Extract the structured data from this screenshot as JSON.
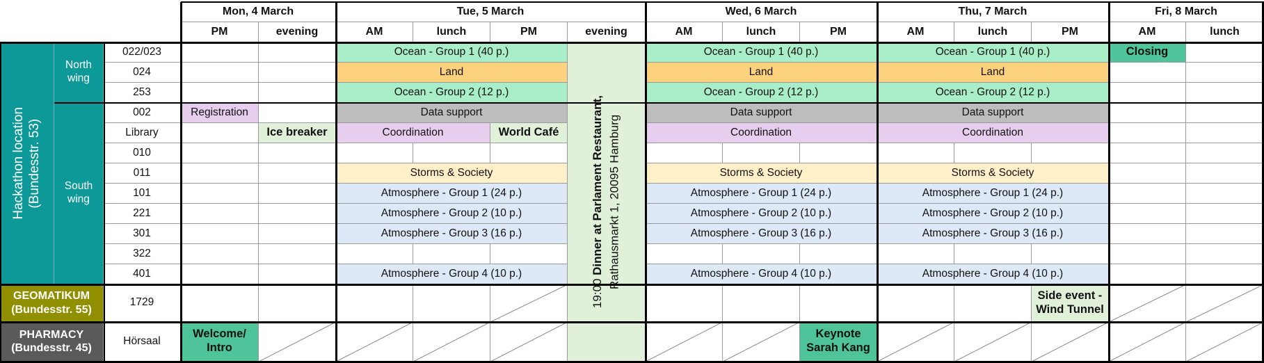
{
  "days": [
    {
      "label": "Mon, 4 March",
      "slots": [
        "PM",
        "evening"
      ]
    },
    {
      "label": "Tue, 5 March",
      "slots": [
        "AM",
        "lunch",
        "PM",
        "evening"
      ]
    },
    {
      "label": "Wed, 6 March",
      "slots": [
        "AM",
        "lunch",
        "PM"
      ]
    },
    {
      "label": "Thu, 7 March",
      "slots": [
        "AM",
        "lunch",
        "PM"
      ]
    },
    {
      "label": "Fri, 8 March",
      "slots": [
        "AM",
        "lunch"
      ]
    }
  ],
  "locations": [
    {
      "name": "Hackathon location\n(Bundesstr. 53)",
      "color": "#0e9999",
      "wings": [
        {
          "name": "North\nwing",
          "rooms": [
            "022/023",
            "024",
            "253"
          ]
        },
        {
          "name": "South\nwing",
          "rooms": [
            "002",
            "Library",
            "010",
            "011",
            "101",
            "221",
            "301",
            "322",
            "401"
          ]
        }
      ]
    },
    {
      "name": "GEOMATIKUM\n(Bundesstr. 55)",
      "color": "#8f8f00",
      "rooms": [
        "1729"
      ]
    },
    {
      "name": "PHARMACY\n(Bundesstr. 45)",
      "color": "#5a5a5a",
      "rooms": [
        "Hörsaal"
      ]
    }
  ],
  "events": [
    {
      "room": 0,
      "from": 2,
      "to": 4,
      "label": "Ocean - Group 1 (40 p.)",
      "color": "#a8efc9"
    },
    {
      "room": 1,
      "from": 2,
      "to": 4,
      "label": "Land",
      "color": "#fdd27f"
    },
    {
      "room": 2,
      "from": 2,
      "to": 4,
      "label": "Ocean - Group 2 (12 p.)",
      "color": "#a8efc9"
    },
    {
      "room": 3,
      "from": 0,
      "to": 0,
      "label": "Registration",
      "color": "#e7cdee"
    },
    {
      "room": 3,
      "from": 2,
      "to": 4,
      "label": "Data support",
      "color": "#bdbdbd"
    },
    {
      "room": 4,
      "from": 1,
      "to": 1,
      "label": "Ice breaker",
      "color": "#e1f0d9",
      "bold": true
    },
    {
      "room": 4,
      "from": 2,
      "to": 3,
      "label": "Coordination",
      "color": "#e7cdee"
    },
    {
      "room": 4,
      "from": 4,
      "to": 4,
      "label": "World Café",
      "color": "#e1f0d9",
      "bold": true
    },
    {
      "room": 6,
      "from": 2,
      "to": 4,
      "label": "Storms & Society",
      "color": "#fff0c9"
    },
    {
      "room": 7,
      "from": 2,
      "to": 4,
      "label": "Atmosphere - Group 1 (24 p.)",
      "color": "#dde9f6"
    },
    {
      "room": 8,
      "from": 2,
      "to": 4,
      "label": "Atmosphere - Group 2 (10 p.)",
      "color": "#dde9f6"
    },
    {
      "room": 9,
      "from": 2,
      "to": 4,
      "label": "Atmosphere - Group 3 (16 p.)",
      "color": "#dde9f6"
    },
    {
      "room": 11,
      "from": 2,
      "to": 4,
      "label": "Atmosphere - Group 4 (10 p.)",
      "color": "#dde9f6"
    },
    {
      "room": 13,
      "from": 0,
      "to": 0,
      "label": "Welcome/\nIntro",
      "color": "#4fc49b",
      "bold": true
    },
    {
      "room": 0,
      "from": 6,
      "to": 8,
      "label": "Ocean - Group 1 (40 p.)",
      "color": "#a8efc9"
    },
    {
      "room": 1,
      "from": 6,
      "to": 8,
      "label": "Land",
      "color": "#fdd27f"
    },
    {
      "room": 2,
      "from": 6,
      "to": 8,
      "label": "Ocean - Group 2 (12 p.)",
      "color": "#a8efc9"
    },
    {
      "room": 3,
      "from": 6,
      "to": 8,
      "label": "Data support",
      "color": "#bdbdbd"
    },
    {
      "room": 4,
      "from": 6,
      "to": 8,
      "label": "Coordination",
      "color": "#e7cdee"
    },
    {
      "room": 6,
      "from": 6,
      "to": 8,
      "label": "Storms & Society",
      "color": "#fff0c9"
    },
    {
      "room": 7,
      "from": 6,
      "to": 8,
      "label": "Atmosphere - Group 1 (24 p.)",
      "color": "#dde9f6"
    },
    {
      "room": 8,
      "from": 6,
      "to": 8,
      "label": "Atmosphere - Group 2 (10 p.)",
      "color": "#dde9f6"
    },
    {
      "room": 9,
      "from": 6,
      "to": 8,
      "label": "Atmosphere - Group 3 (16 p.)",
      "color": "#dde9f6"
    },
    {
      "room": 11,
      "from": 6,
      "to": 8,
      "label": "Atmosphere - Group 4 (10 p.)",
      "color": "#dde9f6"
    },
    {
      "room": 13,
      "from": 8,
      "to": 8,
      "label": "Keynote\nSarah Kang",
      "color": "#4fc49b",
      "bold": true
    },
    {
      "room": 0,
      "from": 9,
      "to": 11,
      "label": "Ocean - Group 1 (40 p.)",
      "color": "#a8efc9"
    },
    {
      "room": 1,
      "from": 9,
      "to": 11,
      "label": "Land",
      "color": "#fdd27f"
    },
    {
      "room": 2,
      "from": 9,
      "to": 11,
      "label": "Ocean - Group 2 (12 p.)",
      "color": "#a8efc9"
    },
    {
      "room": 3,
      "from": 9,
      "to": 11,
      "label": "Data support",
      "color": "#bdbdbd"
    },
    {
      "room": 4,
      "from": 9,
      "to": 11,
      "label": "Coordination",
      "color": "#e7cdee"
    },
    {
      "room": 6,
      "from": 9,
      "to": 11,
      "label": "Storms & Society",
      "color": "#fff0c9"
    },
    {
      "room": 7,
      "from": 9,
      "to": 11,
      "label": "Atmosphere - Group 1 (24 p.)",
      "color": "#dde9f6"
    },
    {
      "room": 8,
      "from": 9,
      "to": 11,
      "label": "Atmosphere - Group 2 (10 p.)",
      "color": "#dde9f6"
    },
    {
      "room": 9,
      "from": 9,
      "to": 11,
      "label": "Atmosphere - Group 3 (16 p.)",
      "color": "#dde9f6"
    },
    {
      "room": 11,
      "from": 9,
      "to": 11,
      "label": "Atmosphere - Group 4 (10 p.)",
      "color": "#dde9f6"
    },
    {
      "room": 12,
      "from": 11,
      "to": 11,
      "label": "Side event -\nWind Tunnel",
      "color": "#e1f0d9",
      "bold": true
    },
    {
      "room": 0,
      "from": 12,
      "to": 12,
      "label": "Closing",
      "color": "#4fc49b",
      "bold": true
    }
  ],
  "dinner": {
    "slot": 5,
    "line1_time": "19:00",
    "line1_text": "Dinner at Parlament Restaurant,",
    "line2": "Rathausmarkt 1, 20095 Hamburg",
    "color": "#e1f0d9"
  },
  "unavailable": [
    {
      "room": 12,
      "slots": [
        4
      ]
    },
    {
      "room": 13,
      "slots": [
        1,
        2,
        3,
        4,
        6,
        7,
        9,
        10,
        11,
        12,
        13
      ]
    },
    {
      "room": 12,
      "slots": [
        12,
        13
      ]
    }
  ],
  "colors": {
    "grid": "#9a9a9a",
    "strong": "#000000",
    "hatch": "#8a8a8a"
  }
}
